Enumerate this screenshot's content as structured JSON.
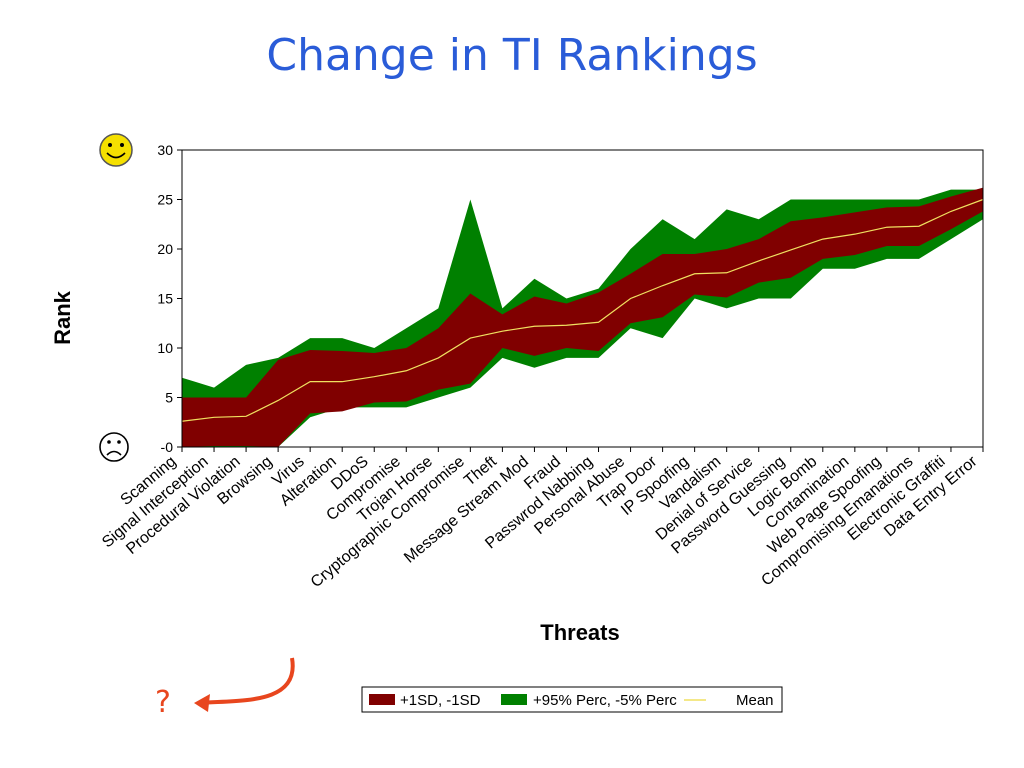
{
  "title": "Change in TI Rankings",
  "annotation": {
    "symbol": "?"
  },
  "icons": {
    "top": "smiley-face-icon",
    "bottom": "frowning-face-icon"
  },
  "colors": {
    "sd_band": "#800000",
    "perc_band": "#008000",
    "mean_line": "#f0e060",
    "title": "#2a5cd8",
    "arrow": "#e8461e",
    "smiley": "#f5e000"
  },
  "chart_data": {
    "type": "area",
    "xlabel": "Threats",
    "ylabel": "Rank",
    "ylim": [
      0,
      30
    ],
    "yticks": [
      0,
      5,
      10,
      15,
      20,
      25,
      30
    ],
    "ytick_labels": [
      "-0",
      "5",
      "10",
      "15",
      "20",
      "25",
      "30"
    ],
    "grid": false,
    "legend_position": "bottom",
    "categories": [
      "Scanning",
      "Signal Interception",
      "Procedural Violation",
      "Browsing",
      "Virus",
      "Alteration",
      "DDoS",
      "Compromise",
      "Trojan Horse",
      "Cryptographic Compromise",
      "Theft",
      "Message Stream Mod",
      "Fraud",
      "Passwrod Nabbing",
      "Personal Abuse",
      "Trap Door",
      "IP Spoofing",
      "Vandalism",
      "Denial of Service",
      "Password Guessing",
      "Logic Bomb",
      "Contamination",
      "Web Page Spoofing",
      "Compromising Emanations",
      "Electronic Graffiti",
      "Data Entry Error"
    ],
    "series": [
      {
        "name": "+95% Perc",
        "values": [
          7,
          6,
          8.3,
          9,
          11,
          11,
          10,
          12,
          14,
          25,
          14,
          17,
          15,
          16,
          20,
          23,
          21,
          24,
          23,
          25,
          25,
          25,
          25,
          25,
          26,
          26
        ]
      },
      {
        "name": "+1SD",
        "values": [
          5,
          5,
          5,
          8.8,
          9.8,
          9.7,
          9.5,
          10,
          12,
          15.5,
          13.4,
          15.2,
          14.5,
          15.6,
          17.5,
          19.5,
          19.5,
          20,
          21,
          22.8,
          23.2,
          23.7,
          24.2,
          24.3,
          25.3,
          26.2
        ]
      },
      {
        "name": "Mean",
        "values": [
          2.6,
          3,
          3.1,
          4.7,
          6.6,
          6.6,
          7.1,
          7.7,
          9,
          11,
          11.7,
          12.2,
          12.3,
          12.6,
          15,
          16.3,
          17.5,
          17.6,
          18.8,
          19.9,
          21,
          21.5,
          22.2,
          22.3,
          23.8,
          25
        ]
      },
      {
        "name": "-1SD",
        "values": [
          0,
          0.1,
          0.1,
          0,
          3.4,
          3.6,
          4.5,
          4.6,
          5.8,
          6.4,
          10,
          9.2,
          10,
          9.7,
          12.5,
          13.1,
          15.4,
          15.1,
          16.6,
          17.1,
          19,
          19.4,
          20.3,
          20.3,
          22,
          23.8
        ]
      },
      {
        "name": "-5% Perc",
        "values": [
          0,
          0,
          0,
          0,
          3,
          4,
          4,
          4,
          5,
          6,
          9,
          8,
          9,
          9,
          12,
          11,
          15,
          14,
          15,
          15,
          18,
          18,
          19,
          19,
          21,
          23
        ]
      }
    ],
    "legend": [
      {
        "label": "+1SD, -1SD",
        "kind": "band",
        "color": "#800000"
      },
      {
        "label": "+95% Perc, -5% Perc",
        "kind": "band",
        "color": "#008000"
      },
      {
        "label": "Mean",
        "kind": "line",
        "color": "#f0e060"
      }
    ]
  }
}
